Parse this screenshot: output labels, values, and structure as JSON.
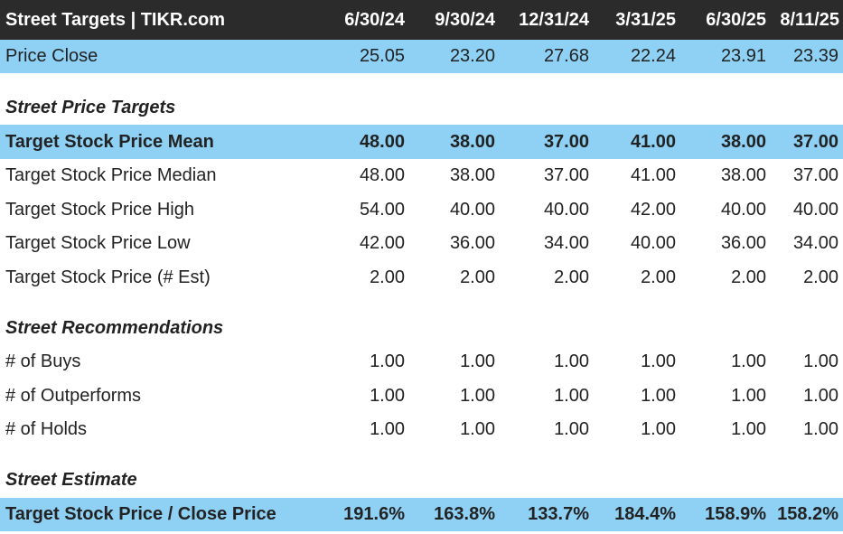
{
  "header": {
    "title": "Street Targets | TIKR.com",
    "dates": [
      "6/30/24",
      "9/30/24",
      "12/31/24",
      "3/31/25",
      "6/30/25",
      "8/11/25"
    ]
  },
  "price_close": {
    "label": "Price Close",
    "values": [
      "25.05",
      "23.20",
      "27.68",
      "22.24",
      "23.91",
      "23.39"
    ]
  },
  "sections": {
    "price_targets": "Street Price Targets",
    "recommendations": "Street Recommendations",
    "estimate": "Street Estimate"
  },
  "target_mean": {
    "label": "Target Stock Price Mean",
    "values": [
      "48.00",
      "38.00",
      "37.00",
      "41.00",
      "38.00",
      "37.00"
    ]
  },
  "target_median": {
    "label": "Target Stock Price Median",
    "values": [
      "48.00",
      "38.00",
      "37.00",
      "41.00",
      "38.00",
      "37.00"
    ]
  },
  "target_high": {
    "label": "Target Stock Price High",
    "values": [
      "54.00",
      "40.00",
      "40.00",
      "42.00",
      "40.00",
      "40.00"
    ]
  },
  "target_low": {
    "label": "Target Stock Price Low",
    "values": [
      "42.00",
      "36.00",
      "34.00",
      "40.00",
      "36.00",
      "34.00"
    ]
  },
  "target_est": {
    "label": "Target Stock Price (# Est)",
    "values": [
      "2.00",
      "2.00",
      "2.00",
      "2.00",
      "2.00",
      "2.00"
    ]
  },
  "buys": {
    "label": "# of Buys",
    "values": [
      "1.00",
      "1.00",
      "1.00",
      "1.00",
      "1.00",
      "1.00"
    ]
  },
  "outperforms": {
    "label": "# of Outperforms",
    "values": [
      "1.00",
      "1.00",
      "1.00",
      "1.00",
      "1.00",
      "1.00"
    ]
  },
  "holds": {
    "label": "# of Holds",
    "values": [
      "1.00",
      "1.00",
      "1.00",
      "1.00",
      "1.00",
      "1.00"
    ]
  },
  "target_vs_close": {
    "label": "Target Stock Price / Close Price",
    "values": [
      "191.6%",
      "163.8%",
      "133.7%",
      "184.4%",
      "158.9%",
      "158.2%"
    ]
  },
  "colors": {
    "header_bg": "#2b2b2b",
    "highlight_bg": "#8ed1f5",
    "text": "#222222"
  }
}
